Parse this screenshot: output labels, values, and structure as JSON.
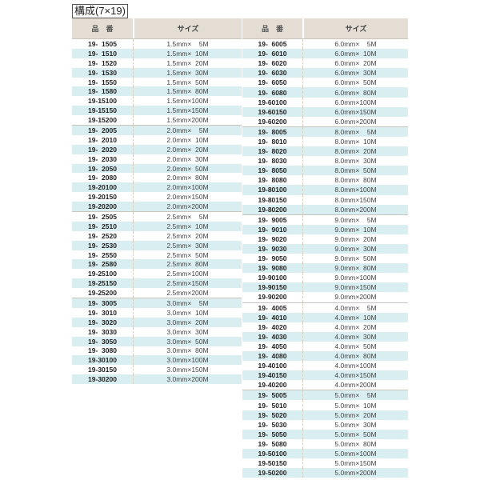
{
  "title": "構成(7×19)",
  "headers": {
    "part": "品　番",
    "size": "サイズ"
  },
  "colors": {
    "header_bg": "#e3ddd4",
    "stripe": "#d8eef1"
  },
  "left": [
    {
      "start_shaded": false,
      "rows": [
        [
          "19-  1505",
          "1.5mm×    5M"
        ],
        [
          "19-  1510",
          "1.5mm×  10M"
        ],
        [
          "19-  1520",
          "1.5mm×  20M"
        ],
        [
          "19-  1530",
          "1.5mm×  30M"
        ],
        [
          "19-  1550",
          "1.5mm×  50M"
        ],
        [
          "19-  1580",
          "1.5mm×  80M"
        ],
        [
          "19-15100",
          "1.5mm×100M"
        ],
        [
          "19-15150",
          "1.5mm×150M"
        ],
        [
          "19-15200",
          "1.5mm×200M"
        ]
      ]
    },
    {
      "start_shaded": true,
      "rows": [
        [
          "19-  2005",
          "2.0mm×    5M"
        ],
        [
          "19-  2010",
          "2.0mm×  10M"
        ],
        [
          "19-  2020",
          "2.0mm×  20M"
        ],
        [
          "19-  2030",
          "2.0mm×  30M"
        ],
        [
          "19-  2050",
          "2.0mm×  50M"
        ],
        [
          "19-  2080",
          "2.0mm×  80M"
        ],
        [
          "19-20100",
          "2.0mm×100M"
        ],
        [
          "19-20150",
          "2.0mm×150M"
        ],
        [
          "19-20200",
          "2.0mm×200M"
        ]
      ]
    },
    {
      "start_shaded": false,
      "rows": [
        [
          "19-  2505",
          "2.5mm×    5M"
        ],
        [
          "19-  2510",
          "2.5mm×  10M"
        ],
        [
          "19-  2520",
          "2.5mm×  20M"
        ],
        [
          "19-  2530",
          "2.5mm×  30M"
        ],
        [
          "19-  2550",
          "2.5mm×  50M"
        ],
        [
          "19-  2580",
          "2.5mm×  80M"
        ],
        [
          "19-25100",
          "2.5mm×100M"
        ],
        [
          "19-25150",
          "2.5mm×150M"
        ],
        [
          "19-25200",
          "2.5mm×200M"
        ]
      ]
    },
    {
      "start_shaded": true,
      "rows": [
        [
          "19-  3005",
          "3.0mm×    5M"
        ],
        [
          "19-  3010",
          "3.0mm×  10M"
        ],
        [
          "19-  3020",
          "3.0mm×  20M"
        ],
        [
          "19-  3030",
          "3.0mm×  30M"
        ],
        [
          "19-  3050",
          "3.0mm×  50M"
        ],
        [
          "19-  3080",
          "3.0mm×  80M"
        ],
        [
          "19-30100",
          "3.0mm×100M"
        ],
        [
          "19-30150",
          "3.0mm×150M"
        ],
        [
          "19-30200",
          "3.0mm×200M"
        ]
      ]
    }
  ],
  "right": [
    {
      "start_shaded": false,
      "rows": [
        [
          "19-  6005",
          "6.0mm×    5M"
        ],
        [
          "19-  6010",
          "6.0mm×  10M"
        ],
        [
          "19-  6020",
          "6.0mm×  20M"
        ],
        [
          "19-  6030",
          "6.0mm×  30M"
        ],
        [
          "19-  6050",
          "6.0mm×  50M"
        ],
        [
          "19-  6080",
          "6.0mm×  80M"
        ],
        [
          "19-60100",
          "6.0mm×100M"
        ],
        [
          "19-60150",
          "6.0mm×150M"
        ],
        [
          "19-60200",
          "6.0mm×200M"
        ]
      ]
    },
    {
      "start_shaded": true,
      "rows": [
        [
          "19-  8005",
          "8.0mm×    5M"
        ],
        [
          "19-  8010",
          "8.0mm×  10M"
        ],
        [
          "19-  8020",
          "8.0mm×  20M"
        ],
        [
          "19-  8030",
          "8.0mm×  30M"
        ],
        [
          "19-  8050",
          "8.0mm×  50M"
        ],
        [
          "19-  8080",
          "8.0mm×  80M"
        ],
        [
          "19-80100",
          "8.0mm×100M"
        ],
        [
          "19-80150",
          "8.0mm×150M"
        ],
        [
          "19-80200",
          "8.0mm×200M"
        ]
      ]
    },
    {
      "start_shaded": false,
      "rows": [
        [
          "19-  9005",
          "9.0mm×    5M"
        ],
        [
          "19-  9010",
          "9.0mm×  10M"
        ],
        [
          "19-  9020",
          "9.0mm×  20M"
        ],
        [
          "19-  9030",
          "9.0mm×  30M"
        ],
        [
          "19-  9050",
          "9.0mm×  50M"
        ],
        [
          "19-  9080",
          "9.0mm×  80M"
        ],
        [
          "19-90100",
          "9.0mm×100M"
        ],
        [
          "19-90150",
          "9.0mm×150M"
        ],
        [
          "19-90200",
          "9.0mm×200M"
        ]
      ]
    },
    {
      "start_shaded": false,
      "rows": [
        [
          "19-  4005",
          "4.0mm×    5M"
        ],
        [
          "19-  4010",
          "4.0mm×  10M"
        ],
        [
          "19-  4020",
          "4.0mm×  20M"
        ],
        [
          "19-  4030",
          "4.0mm×  30M"
        ],
        [
          "19-  4050",
          "4.0mm×  50M"
        ],
        [
          "19-  4080",
          "4.0mm×  80M"
        ],
        [
          "19-40100",
          "4.0mm×100M"
        ],
        [
          "19-40150",
          "4.0mm×150M"
        ],
        [
          "19-40200",
          "4.0mm×200M"
        ]
      ]
    },
    {
      "start_shaded": true,
      "rows": [
        [
          "19-  5005",
          "5.0mm×    5M"
        ],
        [
          "19-  5010",
          "5.0mm×  10M"
        ],
        [
          "19-  5020",
          "5.0mm×  20M"
        ],
        [
          "19-  5030",
          "5.0mm×  30M"
        ],
        [
          "19-  5050",
          "5.0mm×  50M"
        ],
        [
          "19-  5080",
          "5.0mm×  80M"
        ],
        [
          "19-50100",
          "5.0mm×100M"
        ],
        [
          "19-50150",
          "5.0mm×150M"
        ],
        [
          "19-50200",
          "5.0mm×200M"
        ]
      ]
    }
  ]
}
